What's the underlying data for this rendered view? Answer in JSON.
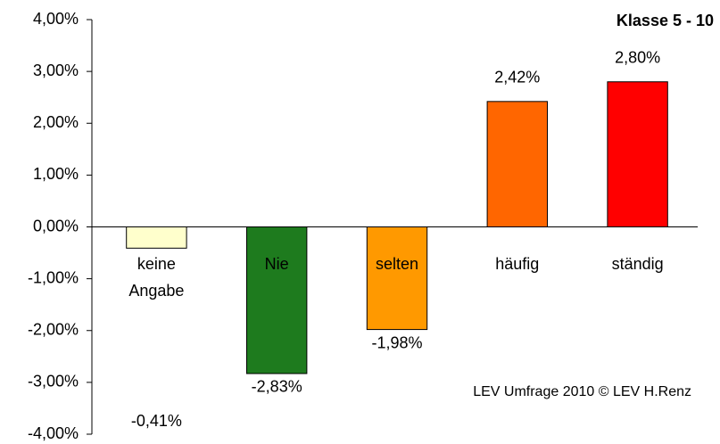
{
  "chart_data": {
    "type": "bar",
    "title": "Klasse 5 - 10",
    "annotation": "LEV Umfrage 2010  © LEV   H.Renz",
    "categories": [
      "keine Angabe",
      "Nie",
      "selten",
      "häufig",
      "ständig"
    ],
    "values": [
      -0.41,
      -2.83,
      -1.98,
      2.42,
      2.8
    ],
    "value_labels": [
      "-0,41%",
      "-2,83%",
      "-1,98%",
      "2,42%",
      "2,80%"
    ],
    "colors": [
      "#ffffcc",
      "#1e7b1e",
      "#ff9900",
      "#ff6600",
      "#ff0000"
    ],
    "ylim": [
      -4,
      4
    ],
    "yticks": [
      {
        "value": -4,
        "label": "-4,00%"
      },
      {
        "value": -3,
        "label": "-3,00%"
      },
      {
        "value": -2,
        "label": "-2,00%"
      },
      {
        "value": -1,
        "label": "-1,00%"
      },
      {
        "value": 0,
        "label": "0,00%"
      },
      {
        "value": 1,
        "label": "1,00%"
      },
      {
        "value": 2,
        "label": "2,00%"
      },
      {
        "value": 3,
        "label": "3,00%"
      },
      {
        "value": 4,
        "label": "4,00%"
      }
    ],
    "grid": false
  }
}
